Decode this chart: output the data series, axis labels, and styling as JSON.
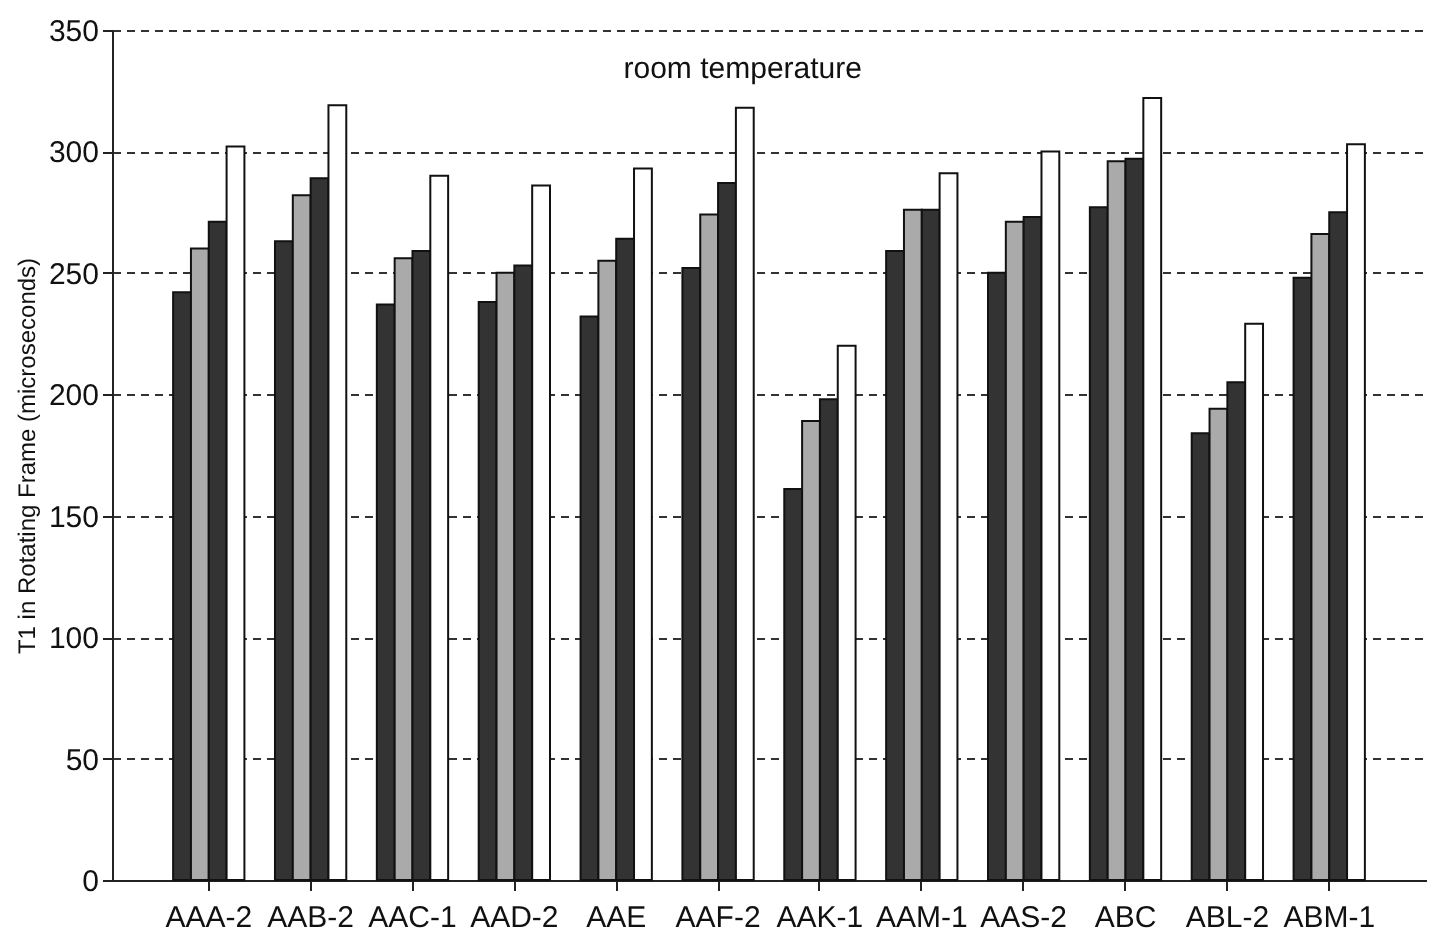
{
  "chart_data": {
    "type": "bar",
    "ylabel": "T1 in Rotating Frame (microseconds)",
    "annotations": [
      "room temperature"
    ],
    "categories": [
      "AAA-2",
      "AAB-2",
      "AAC-1",
      "AAD-2",
      "AAE",
      "AAF-2",
      "AAK-1",
      "AAM-1",
      "AAS-2",
      "ABC",
      "ABL-2",
      "ABM-1"
    ],
    "series": [
      {
        "color": "#333333",
        "values": [
          242,
          263,
          237,
          238,
          232,
          252,
          161,
          259,
          250,
          277,
          184,
          248
        ]
      },
      {
        "color": "#aaaaaa",
        "values": [
          260,
          282,
          256,
          250,
          255,
          274,
          189,
          276,
          271,
          296,
          194,
          266
        ]
      },
      {
        "color": "#333333",
        "values": [
          271,
          289,
          259,
          253,
          264,
          287,
          198,
          276,
          273,
          297,
          205,
          275
        ]
      },
      {
        "color": "#ffffff",
        "values": [
          302,
          319,
          290,
          286,
          293,
          318,
          220,
          291,
          300,
          322,
          229,
          303
        ]
      }
    ],
    "ylim": [
      0,
      350
    ],
    "yticks": [
      0,
      50,
      100,
      150,
      200,
      250,
      300,
      350
    ],
    "grid": "y",
    "legend": false
  }
}
